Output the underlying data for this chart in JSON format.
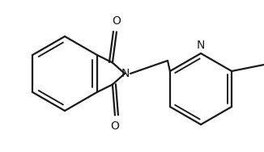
{
  "bg_color": "#ffffff",
  "line_color": "#1a1a1a",
  "line_width": 1.6,
  "font_size": 10,
  "figsize": [
    3.26,
    1.88
  ],
  "dpi": 100,
  "xlim": [
    0,
    326
  ],
  "ylim": [
    0,
    188
  ]
}
